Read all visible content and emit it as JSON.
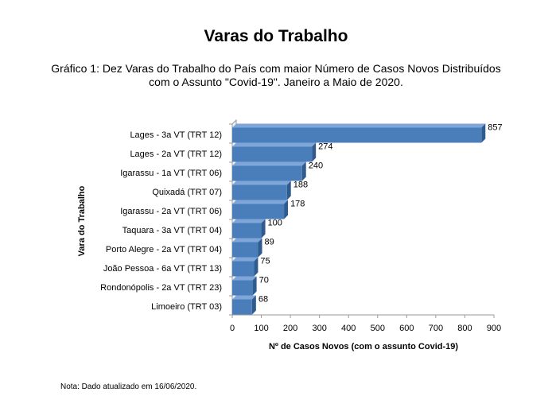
{
  "page": {
    "title": "Varas do Trabalho",
    "subtitle_line1": "Gráfico 1: Dez Varas do Trabalho do País com maior Número de Casos Novos Distribuídos",
    "subtitle_line2": "com o Assunto \"Covid-19\". Janeiro a Maio de 2020.",
    "note": "Nota: Dado atualizado em 16/06/2020."
  },
  "chart_data": {
    "type": "bar",
    "orientation": "horizontal",
    "style": "3d",
    "categories": [
      "Lages - 3a VT (TRT 12)",
      "Lages - 2a VT (TRT 12)",
      "Igarassu - 1a VT (TRT 06)",
      "Quixadá (TRT 07)",
      "Igarassu - 2a VT (TRT 06)",
      "Taquara - 3a VT (TRT 04)",
      "Porto Alegre - 2a VT (TRT 04)",
      "João Pessoa - 6a VT (TRT 13)",
      "Rondonópolis - 2a VT (TRT 23)",
      "Limoeiro (TRT 03)"
    ],
    "values": [
      857,
      274,
      240,
      188,
      178,
      100,
      89,
      75,
      70,
      68
    ],
    "data_labels": [
      "857",
      "274",
      "240",
      "188",
      "178",
      "100",
      "89",
      "75",
      "70",
      "68"
    ],
    "xlabel": "Nº de Casos Novos (com o assunto Covid-19)",
    "ylabel": "Vara do Trabalho",
    "xlim": [
      0,
      900
    ],
    "x_ticks": [
      0,
      100,
      200,
      300,
      400,
      500,
      600,
      700,
      800,
      900
    ],
    "x_tick_labels": [
      "0",
      "100",
      "200",
      "300",
      "400",
      "500",
      "600",
      "700",
      "800",
      "900"
    ],
    "grid": false,
    "legend": "none",
    "colors": {
      "bar_front": "#4a7ebb",
      "bar_top": "#7fa6d9",
      "bar_side": "#2f5b8e"
    }
  }
}
